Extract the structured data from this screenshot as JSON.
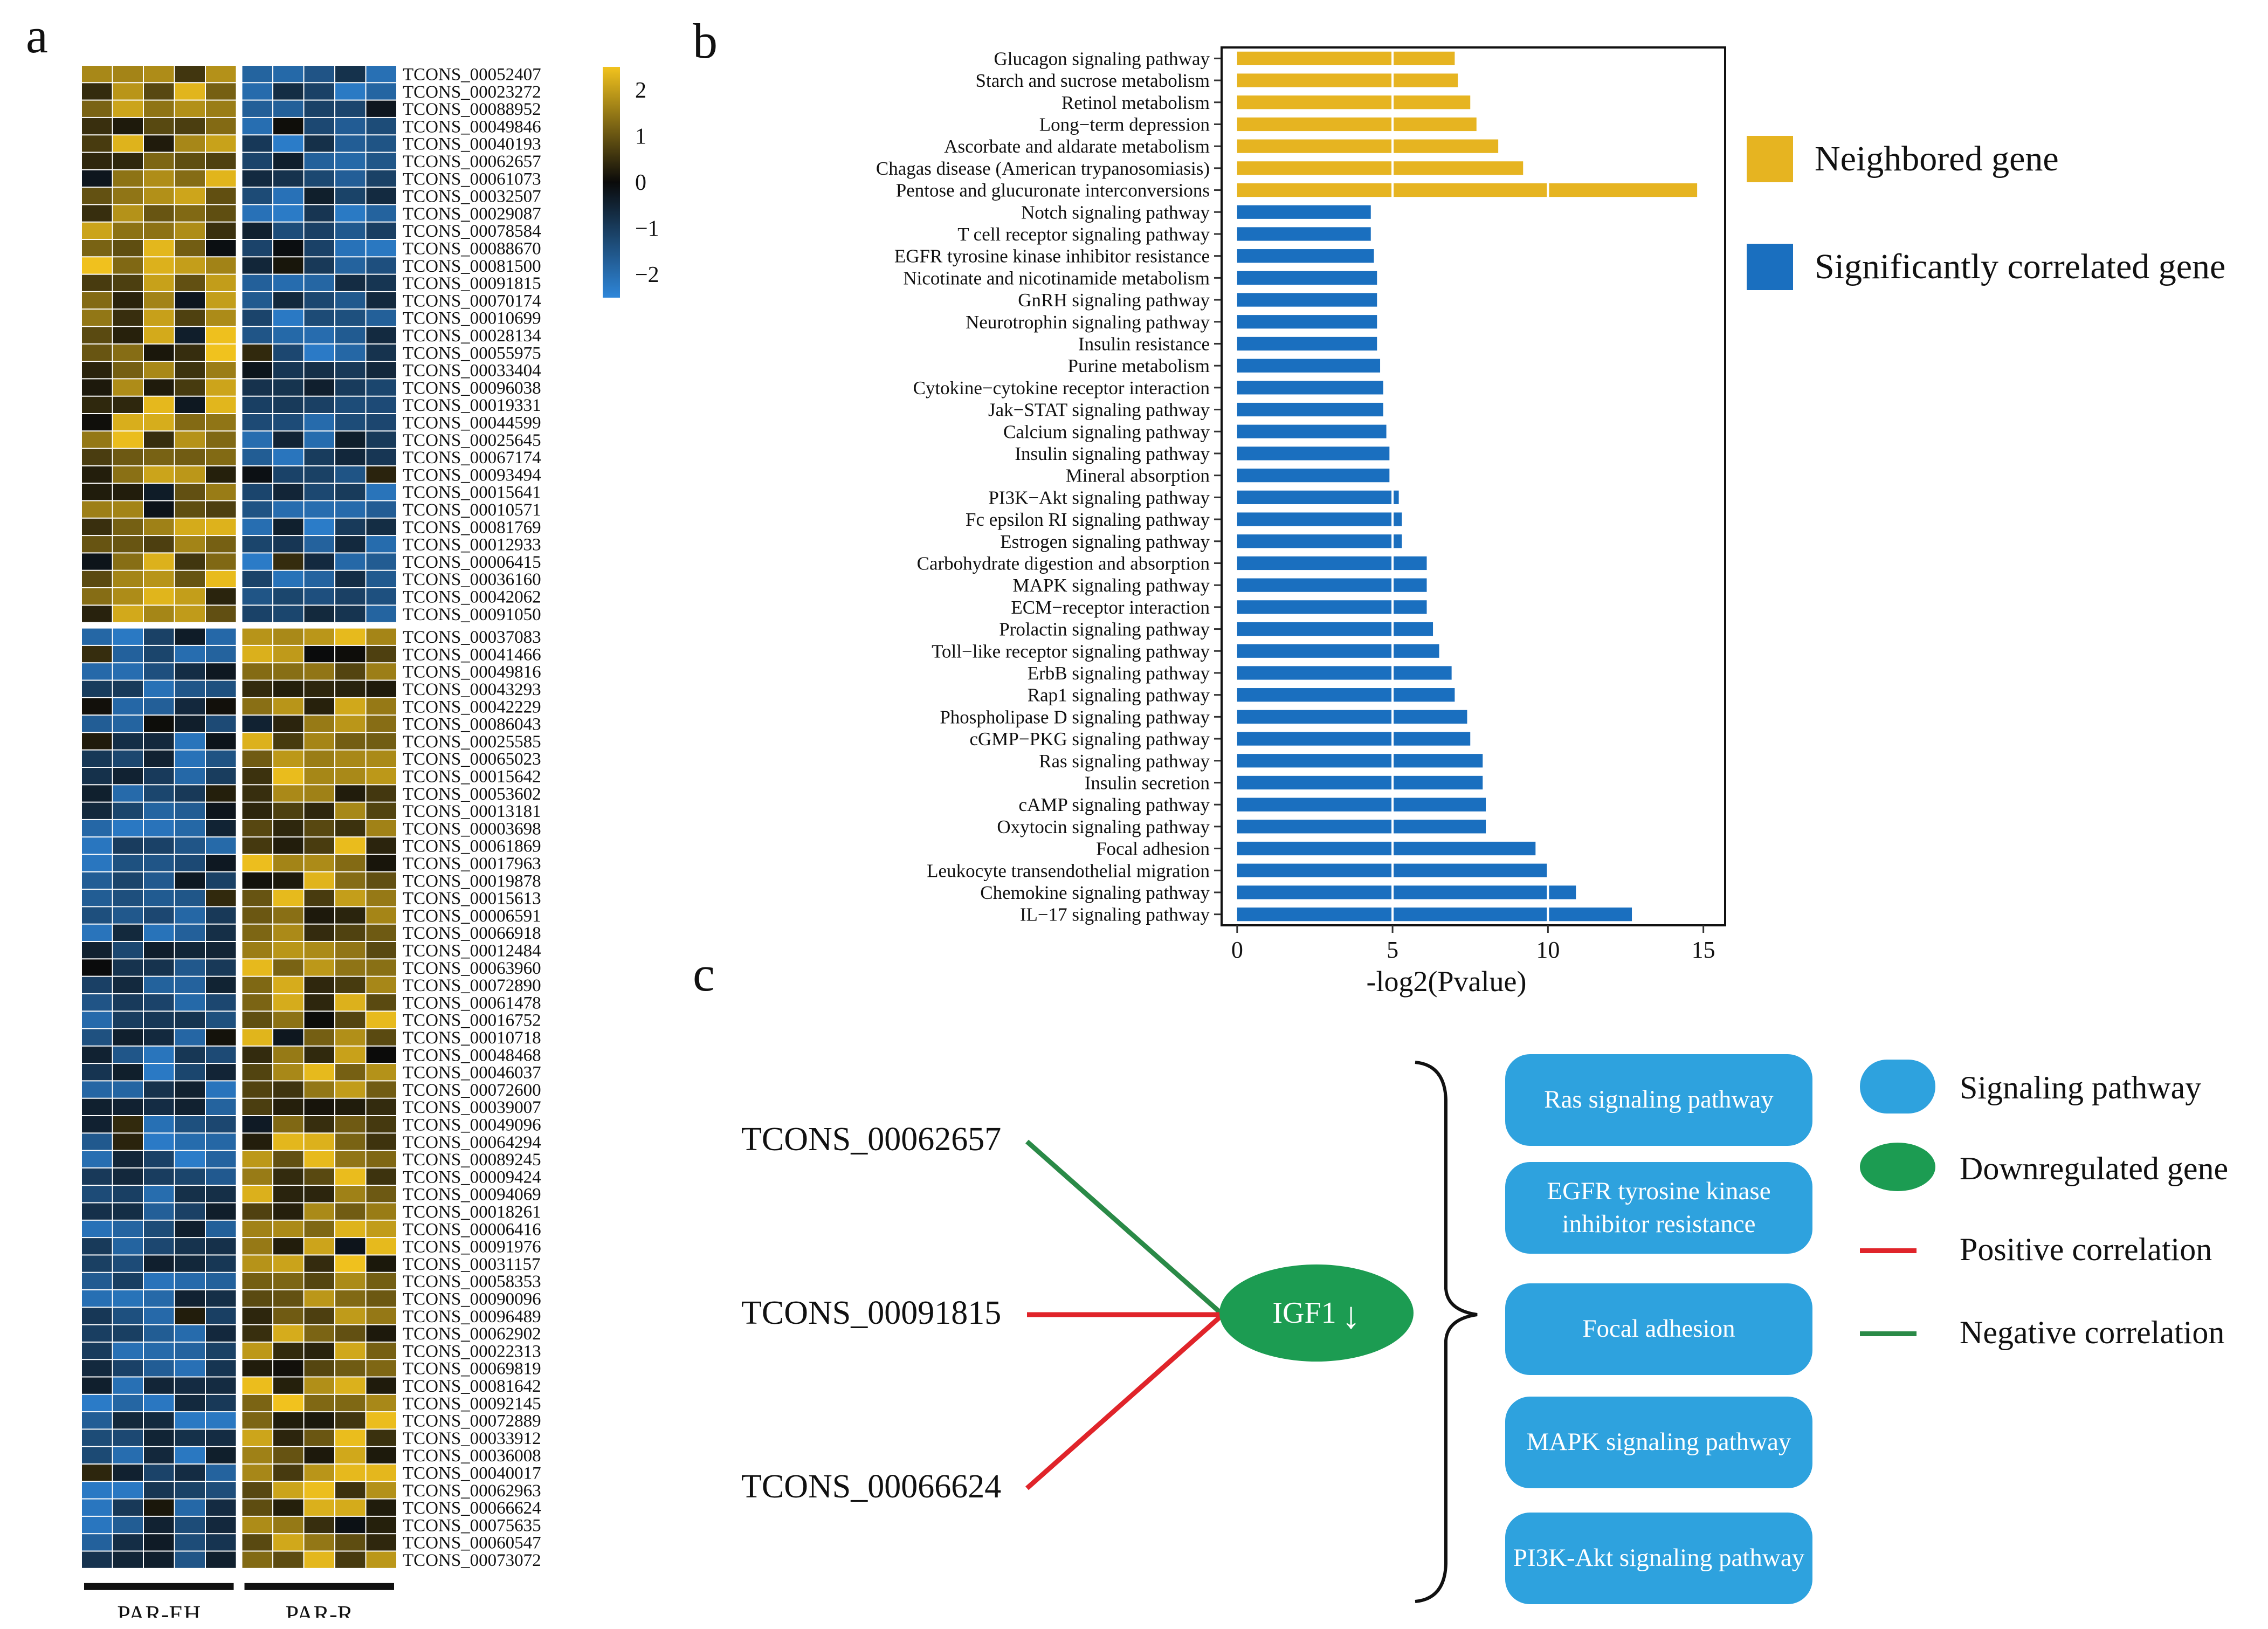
{
  "panel_labels": {
    "a": "a",
    "b": "b",
    "c": "c"
  },
  "chart_data": [
    {
      "type": "heatmap",
      "panel": "a",
      "colorbar": {
        "ticks": [
          "2",
          "1",
          "0",
          "−1",
          "−2"
        ],
        "range": [
          -2.5,
          2.5
        ],
        "colors": {
          "high": "#F2C31E",
          "mid": "#0a0a0a",
          "low": "#2E86D9"
        }
      },
      "groups": [
        "PAR-EH",
        "PAR-R"
      ],
      "columns_per_group": 5,
      "top_cluster_rows": 32,
      "rows": [
        "TCONS_00052407",
        "TCONS_00023272",
        "TCONS_00088952",
        "TCONS_00049846",
        "TCONS_00040193",
        "TCONS_00062657",
        "TCONS_00061073",
        "TCONS_00032507",
        "TCONS_00029087",
        "TCONS_00078584",
        "TCONS_00088670",
        "TCONS_00081500",
        "TCONS_00091815",
        "TCONS_00070174",
        "TCONS_00010699",
        "TCONS_00028134",
        "TCONS_00055975",
        "TCONS_00033404",
        "TCONS_00096038",
        "TCONS_00019331",
        "TCONS_00044599",
        "TCONS_00025645",
        "TCONS_00067174",
        "TCONS_00093494",
        "TCONS_00015641",
        "TCONS_00010571",
        "TCONS_00081769",
        "TCONS_00012933",
        "TCONS_00006415",
        "TCONS_00036160",
        "TCONS_00042062",
        "TCONS_00091050",
        "TCONS_00037083",
        "TCONS_00041466",
        "TCONS_00049816",
        "TCONS_00043293",
        "TCONS_00042229",
        "TCONS_00086043",
        "TCONS_00025585",
        "TCONS_00065023",
        "TCONS_00015642",
        "TCONS_00053602",
        "TCONS_00013181",
        "TCONS_00003698",
        "TCONS_00061869",
        "TCONS_00017963",
        "TCONS_00019878",
        "TCONS_00015613",
        "TCONS_00006591",
        "TCONS_00066918",
        "TCONS_00012484",
        "TCONS_00063960",
        "TCONS_00072890",
        "TCONS_00061478",
        "TCONS_00016752",
        "TCONS_00010718",
        "TCONS_00048468",
        "TCONS_00046037",
        "TCONS_00072600",
        "TCONS_00039007",
        "TCONS_00049096",
        "TCONS_00064294",
        "TCONS_00089245",
        "TCONS_00009424",
        "TCONS_00094069",
        "TCONS_00018261",
        "TCONS_00006416",
        "TCONS_00091976",
        "TCONS_00031157",
        "TCONS_00058353",
        "TCONS_00090096",
        "TCONS_00096489",
        "TCONS_00062902",
        "TCONS_00022313",
        "TCONS_00069819",
        "TCONS_00081642",
        "TCONS_00092145",
        "TCONS_00072889",
        "TCONS_00033912",
        "TCONS_00036008",
        "TCONS_00040017",
        "TCONS_00062963",
        "TCONS_00066624",
        "TCONS_00075635",
        "TCONS_00060547",
        "TCONS_00073072"
      ]
    },
    {
      "type": "bar",
      "panel": "b",
      "orientation": "horizontal",
      "xlabel": "-log2(Pvalue)",
      "xlim": [
        -0.5,
        15.7
      ],
      "xticks": [
        0,
        5,
        10,
        15
      ],
      "categories": [
        "Glucagon signaling pathway",
        "Starch and sucrose metabolism",
        "Retinol metabolism",
        "Long−term depression",
        "Ascorbate and aldarate metabolism",
        "Chagas disease (American trypanosomiasis)",
        "Pentose and glucuronate interconversions",
        "Notch signaling pathway",
        "T cell receptor signaling pathway",
        "EGFR tyrosine kinase inhibitor resistance",
        "Nicotinate and nicotinamide metabolism",
        "GnRH signaling pathway",
        "Neurotrophin signaling pathway",
        "Insulin resistance",
        "Purine metabolism",
        "Cytokine−cytokine receptor interaction",
        "Jak−STAT signaling pathway",
        "Calcium signaling pathway",
        "Insulin signaling pathway",
        "Mineral absorption",
        "PI3K−Akt signaling pathway",
        "Fc epsilon RI signaling pathway",
        "Estrogen signaling pathway",
        "Carbohydrate digestion and absorption",
        "MAPK signaling pathway",
        "ECM−receptor interaction",
        "Prolactin signaling pathway",
        "Toll−like receptor signaling pathway",
        "ErbB signaling pathway",
        "Rap1 signaling pathway",
        "Phospholipase D signaling pathway",
        "cGMP−PKG signaling pathway",
        "Ras signaling pathway",
        "Insulin secretion",
        "cAMP signaling pathway",
        "Oxytocin signaling pathway",
        "Focal adhesion",
        "Leukocyte transendothelial migration",
        "Chemokine signaling pathway",
        "IL−17 signaling pathway"
      ],
      "values": [
        7.0,
        7.1,
        7.5,
        7.7,
        8.4,
        9.2,
        14.8,
        4.3,
        4.3,
        4.4,
        4.5,
        4.5,
        4.5,
        4.5,
        4.6,
        4.7,
        4.7,
        4.8,
        4.9,
        4.9,
        5.2,
        5.3,
        5.3,
        6.1,
        6.1,
        6.1,
        6.3,
        6.5,
        6.9,
        7.0,
        7.4,
        7.5,
        7.9,
        7.9,
        8.0,
        8.0,
        9.6,
        10.0,
        10.9,
        12.7
      ],
      "groups": [
        "Neighbored gene",
        "Neighbored gene",
        "Neighbored gene",
        "Neighbored gene",
        "Neighbored gene",
        "Neighbored gene",
        "Neighbored gene",
        "Significantly correlated gene",
        "Significantly correlated gene",
        "Significantly correlated gene",
        "Significantly correlated gene",
        "Significantly correlated gene",
        "Significantly correlated gene",
        "Significantly correlated gene",
        "Significantly correlated gene",
        "Significantly correlated gene",
        "Significantly correlated gene",
        "Significantly correlated gene",
        "Significantly correlated gene",
        "Significantly correlated gene",
        "Significantly correlated gene",
        "Significantly correlated gene",
        "Significantly correlated gene",
        "Significantly correlated gene",
        "Significantly correlated gene",
        "Significantly correlated gene",
        "Significantly correlated gene",
        "Significantly correlated gene",
        "Significantly correlated gene",
        "Significantly correlated gene",
        "Significantly correlated gene",
        "Significantly correlated gene",
        "Significantly correlated gene",
        "Significantly correlated gene",
        "Significantly correlated gene",
        "Significantly correlated gene",
        "Significantly correlated gene",
        "Significantly correlated gene",
        "Significantly correlated gene",
        "Significantly correlated gene"
      ],
      "legend": [
        {
          "name": "Neighbored gene",
          "color": "#E6B421"
        },
        {
          "name": "Significantly correlated gene",
          "color": "#1A6FBF"
        }
      ]
    }
  ],
  "network": {
    "genes": [
      "TCONS_00062657",
      "TCONS_00091815",
      "TCONS_00066624"
    ],
    "edge_types": [
      "negative",
      "positive",
      "positive"
    ],
    "hub": {
      "name": "IGF1",
      "arrow": "↓"
    },
    "pathways": [
      "Ras signaling pathway",
      "EGFR tyrosine kinase inhibitor resistance",
      "Focal adhesion",
      "MAPK signaling pathway",
      "PI3K-Akt signaling pathway"
    ],
    "colors": {
      "pathway": "#2EA2DE",
      "gene": "#1C9C52",
      "positive": "#E0242A",
      "negative": "#2A8A47"
    },
    "legend": [
      {
        "label": "Signaling pathway",
        "kind": "pathway"
      },
      {
        "label": "Downregulated gene",
        "kind": "gene"
      },
      {
        "label": "Positive correlation",
        "kind": "positive"
      },
      {
        "label": "Negative correlation",
        "kind": "negative"
      }
    ]
  }
}
